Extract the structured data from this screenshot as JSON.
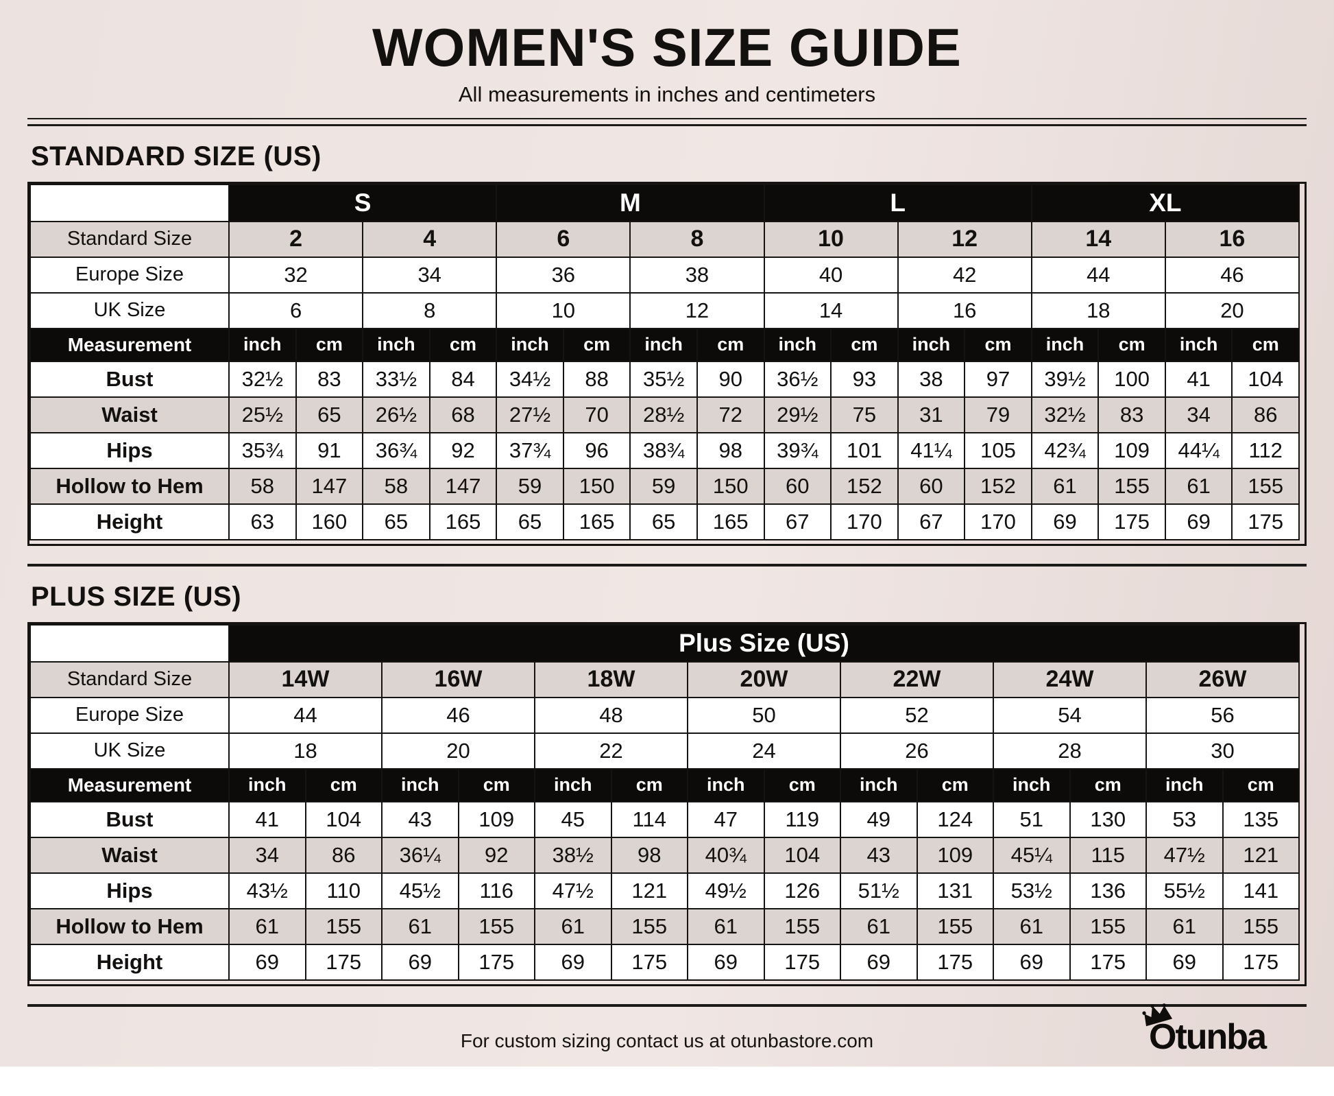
{
  "header": {
    "title": "WOMEN'S SIZE GUIDE",
    "subtitle": "All measurements in inches and centimeters"
  },
  "standard_table": {
    "heading": "STANDARD SIZE (US)",
    "group_headers": [
      "S",
      "M",
      "L",
      "XL"
    ],
    "size_rows": [
      {
        "label": "Standard Size",
        "values": [
          "2",
          "4",
          "6",
          "8",
          "10",
          "12",
          "14",
          "16"
        ]
      },
      {
        "label": "Europe Size",
        "values": [
          "32",
          "34",
          "36",
          "38",
          "40",
          "42",
          "44",
          "46"
        ]
      },
      {
        "label": "UK Size",
        "values": [
          "6",
          "8",
          "10",
          "12",
          "14",
          "16",
          "18",
          "20"
        ]
      }
    ],
    "measurement_header": {
      "label": "Measurement",
      "inch": "inch",
      "cm": "cm"
    },
    "measurement_rows": [
      {
        "label": "Bust",
        "pairs": [
          [
            "32½",
            "83"
          ],
          [
            "33½",
            "84"
          ],
          [
            "34½",
            "88"
          ],
          [
            "35½",
            "90"
          ],
          [
            "36½",
            "93"
          ],
          [
            "38",
            "97"
          ],
          [
            "39½",
            "100"
          ],
          [
            "41",
            "104"
          ]
        ]
      },
      {
        "label": "Waist",
        "pairs": [
          [
            "25½",
            "65"
          ],
          [
            "26½",
            "68"
          ],
          [
            "27½",
            "70"
          ],
          [
            "28½",
            "72"
          ],
          [
            "29½",
            "75"
          ],
          [
            "31",
            "79"
          ],
          [
            "32½",
            "83"
          ],
          [
            "34",
            "86"
          ]
        ]
      },
      {
        "label": "Hips",
        "pairs": [
          [
            "35¾",
            "91"
          ],
          [
            "36¾",
            "92"
          ],
          [
            "37¾",
            "96"
          ],
          [
            "38¾",
            "98"
          ],
          [
            "39¾",
            "101"
          ],
          [
            "41¼",
            "105"
          ],
          [
            "42¾",
            "109"
          ],
          [
            "44¼",
            "112"
          ]
        ]
      },
      {
        "label": "Hollow to Hem",
        "pairs": [
          [
            "58",
            "147"
          ],
          [
            "58",
            "147"
          ],
          [
            "59",
            "150"
          ],
          [
            "59",
            "150"
          ],
          [
            "60",
            "152"
          ],
          [
            "60",
            "152"
          ],
          [
            "61",
            "155"
          ],
          [
            "61",
            "155"
          ]
        ]
      },
      {
        "label": "Height",
        "pairs": [
          [
            "63",
            "160"
          ],
          [
            "65",
            "165"
          ],
          [
            "65",
            "165"
          ],
          [
            "65",
            "165"
          ],
          [
            "67",
            "170"
          ],
          [
            "67",
            "170"
          ],
          [
            "69",
            "175"
          ],
          [
            "69",
            "175"
          ]
        ]
      }
    ]
  },
  "plus_table": {
    "heading": "PLUS SIZE (US)",
    "group_headers": [
      "Plus Size (US)"
    ],
    "size_rows": [
      {
        "label": "Standard Size",
        "values": [
          "14W",
          "16W",
          "18W",
          "20W",
          "22W",
          "24W",
          "26W"
        ]
      },
      {
        "label": "Europe Size",
        "values": [
          "44",
          "46",
          "48",
          "50",
          "52",
          "54",
          "56"
        ]
      },
      {
        "label": "UK Size",
        "values": [
          "18",
          "20",
          "22",
          "24",
          "26",
          "28",
          "30"
        ]
      }
    ],
    "measurement_header": {
      "label": "Measurement",
      "inch": "inch",
      "cm": "cm"
    },
    "measurement_rows": [
      {
        "label": "Bust",
        "pairs": [
          [
            "41",
            "104"
          ],
          [
            "43",
            "109"
          ],
          [
            "45",
            "114"
          ],
          [
            "47",
            "119"
          ],
          [
            "49",
            "124"
          ],
          [
            "51",
            "130"
          ],
          [
            "53",
            "135"
          ]
        ]
      },
      {
        "label": "Waist",
        "pairs": [
          [
            "34",
            "86"
          ],
          [
            "36¼",
            "92"
          ],
          [
            "38½",
            "98"
          ],
          [
            "40¾",
            "104"
          ],
          [
            "43",
            "109"
          ],
          [
            "45¼",
            "115"
          ],
          [
            "47½",
            "121"
          ]
        ]
      },
      {
        "label": "Hips",
        "pairs": [
          [
            "43½",
            "110"
          ],
          [
            "45½",
            "116"
          ],
          [
            "47½",
            "121"
          ],
          [
            "49½",
            "126"
          ],
          [
            "51½",
            "131"
          ],
          [
            "53½",
            "136"
          ],
          [
            "55½",
            "141"
          ]
        ]
      },
      {
        "label": "Hollow to Hem",
        "pairs": [
          [
            "61",
            "155"
          ],
          [
            "61",
            "155"
          ],
          [
            "61",
            "155"
          ],
          [
            "61",
            "155"
          ],
          [
            "61",
            "155"
          ],
          [
            "61",
            "155"
          ],
          [
            "61",
            "155"
          ]
        ]
      },
      {
        "label": "Height",
        "pairs": [
          [
            "69",
            "175"
          ],
          [
            "69",
            "175"
          ],
          [
            "69",
            "175"
          ],
          [
            "69",
            "175"
          ],
          [
            "69",
            "175"
          ],
          [
            "69",
            "175"
          ],
          [
            "69",
            "175"
          ]
        ]
      }
    ]
  },
  "footer": {
    "note": "For custom sizing contact us at otunbastore.com",
    "brand": "Otunba",
    "brand_icon": "crown-icon"
  },
  "colors": {
    "page_background": "#ece2df",
    "shaded_row": "#dbd4d1",
    "band_black": "#0c0b0a",
    "border": "#161412",
    "text": "#121110",
    "white_cell": "#ffffff"
  }
}
